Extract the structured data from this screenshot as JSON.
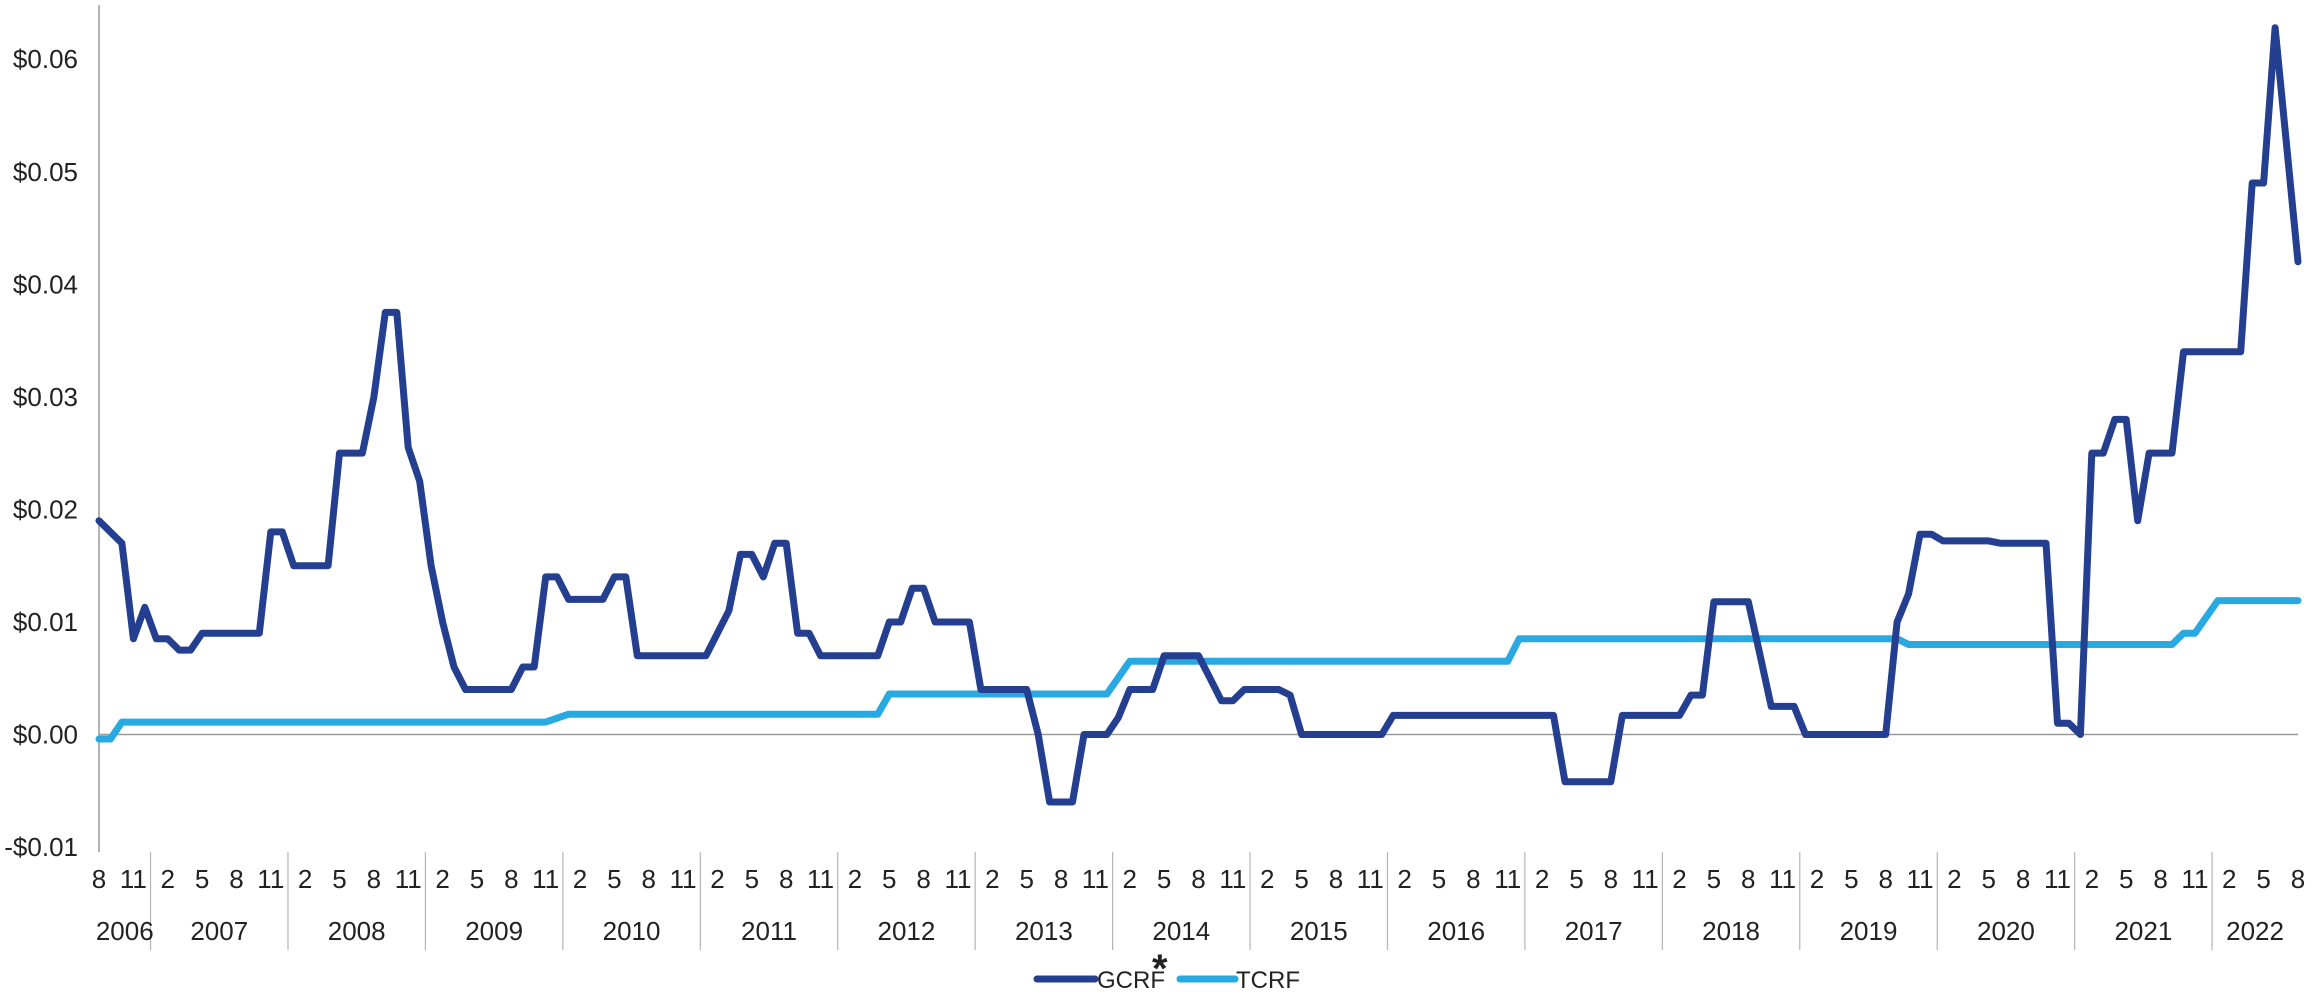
{
  "chart_data": {
    "type": "line",
    "title": "",
    "xlabel": "",
    "ylabel": "",
    "ylim": [
      -0.01,
      0.065
    ],
    "yticks": [
      0.06,
      0.05,
      0.04,
      0.03,
      0.02,
      0.01,
      0.0,
      -0.01
    ],
    "ytick_labels": [
      "$0.06",
      "$0.05",
      "$0.04",
      "$0.03",
      "$0.02",
      "$0.01",
      "$0.00",
      "-$0.01"
    ],
    "x_start": "2006-08",
    "x_end": "2022-08",
    "month_tick_labels": [
      "8",
      "11",
      "2",
      "5",
      "8",
      "11",
      "2",
      "5",
      "8",
      "11",
      "2",
      "5",
      "8",
      "11",
      "2",
      "5",
      "8",
      "11",
      "2",
      "5",
      "8",
      "11",
      "2",
      "5",
      "8",
      "11",
      "2",
      "5",
      "8",
      "11",
      "2",
      "5",
      "8",
      "11",
      "2",
      "5",
      "8",
      "11",
      "2",
      "5",
      "8",
      "11",
      "2",
      "5",
      "8",
      "11",
      "2",
      "5",
      "8",
      "11",
      "2",
      "5",
      "8",
      "11",
      "2",
      "5",
      "8",
      "11",
      "2",
      "5",
      "8",
      "11",
      "2",
      "5",
      "8"
    ],
    "month_tick_dates": [
      "2006-08",
      "2006-11",
      "2007-02",
      "2007-05",
      "2007-08",
      "2007-11",
      "2008-02",
      "2008-05",
      "2008-08",
      "2008-11",
      "2009-02",
      "2009-05",
      "2009-08",
      "2009-11",
      "2010-02",
      "2010-05",
      "2010-08",
      "2010-11",
      "2011-02",
      "2011-05",
      "2011-08",
      "2011-11",
      "2012-02",
      "2012-05",
      "2012-08",
      "2012-11",
      "2013-02",
      "2013-05",
      "2013-08",
      "2013-11",
      "2014-02",
      "2014-05",
      "2014-08",
      "2014-11",
      "2015-02",
      "2015-05",
      "2015-08",
      "2015-11",
      "2016-02",
      "2016-05",
      "2016-08",
      "2016-11",
      "2017-02",
      "2017-05",
      "2017-08",
      "2017-11",
      "2018-02",
      "2018-05",
      "2018-08",
      "2018-11",
      "2019-02",
      "2019-05",
      "2019-08",
      "2019-11",
      "2020-02",
      "2020-05",
      "2020-08",
      "2020-11",
      "2021-02",
      "2021-05",
      "2021-08",
      "2021-11",
      "2022-02",
      "2022-05",
      "2022-08"
    ],
    "years": [
      "2006",
      "2007",
      "2008",
      "2009",
      "2010",
      "2011",
      "2012",
      "2013",
      "2014",
      "2015",
      "2016",
      "2017",
      "2018",
      "2019",
      "2020",
      "2021",
      "2022"
    ],
    "grid": false,
    "legend_position": "bottom-center",
    "footnote_mark": "*",
    "series": [
      {
        "name": "GCRF",
        "color": "#243f8f",
        "points": [
          [
            "2006-08",
            0.019
          ],
          [
            "2006-10",
            0.017
          ],
          [
            "2006-11",
            0.0085
          ],
          [
            "2006-12",
            0.0113
          ],
          [
            "2007-01",
            0.0085
          ],
          [
            "2007-02",
            0.0085
          ],
          [
            "2007-03",
            0.0075
          ],
          [
            "2007-04",
            0.0075
          ],
          [
            "2007-05",
            0.009
          ],
          [
            "2007-10",
            0.009
          ],
          [
            "2007-11",
            0.018
          ],
          [
            "2007-12",
            0.018
          ],
          [
            "2008-01",
            0.015
          ],
          [
            "2008-04",
            0.015
          ],
          [
            "2008-05",
            0.025
          ],
          [
            "2008-07",
            0.025
          ],
          [
            "2008-08",
            0.03
          ],
          [
            "2008-09",
            0.0375
          ],
          [
            "2008-10",
            0.0375
          ],
          [
            "2008-11",
            0.0255
          ],
          [
            "2008-12",
            0.0225
          ],
          [
            "2009-01",
            0.015
          ],
          [
            "2009-02",
            0.01
          ],
          [
            "2009-03",
            0.006
          ],
          [
            "2009-04",
            0.004
          ],
          [
            "2009-08",
            0.004
          ],
          [
            "2009-09",
            0.006
          ],
          [
            "2009-10",
            0.006
          ],
          [
            "2009-11",
            0.014
          ],
          [
            "2009-12",
            0.014
          ],
          [
            "2010-01",
            0.012
          ],
          [
            "2010-04",
            0.012
          ],
          [
            "2010-05",
            0.014
          ],
          [
            "2010-06",
            0.014
          ],
          [
            "2010-07",
            0.007
          ],
          [
            "2011-01",
            0.007
          ],
          [
            "2011-03",
            0.011
          ],
          [
            "2011-04",
            0.016
          ],
          [
            "2011-05",
            0.016
          ],
          [
            "2011-06",
            0.014
          ],
          [
            "2011-07",
            0.017
          ],
          [
            "2011-08",
            0.017
          ],
          [
            "2011-09",
            0.009
          ],
          [
            "2011-10",
            0.009
          ],
          [
            "2011-11",
            0.007
          ],
          [
            "2012-04",
            0.007
          ],
          [
            "2012-05",
            0.01
          ],
          [
            "2012-06",
            0.01
          ],
          [
            "2012-07",
            0.013
          ],
          [
            "2012-08",
            0.013
          ],
          [
            "2012-09",
            0.01
          ],
          [
            "2012-12",
            0.01
          ],
          [
            "2013-01",
            0.004
          ],
          [
            "2013-05",
            0.004
          ],
          [
            "2013-06",
            0.0
          ],
          [
            "2013-07",
            -0.006
          ],
          [
            "2013-09",
            -0.006
          ],
          [
            "2013-10",
            0.0
          ],
          [
            "2013-12",
            0.0
          ],
          [
            "2014-01",
            0.0015
          ],
          [
            "2014-02",
            0.004
          ],
          [
            "2014-04",
            0.004
          ],
          [
            "2014-05",
            0.007
          ],
          [
            "2014-08",
            0.007
          ],
          [
            "2014-09",
            0.005
          ],
          [
            "2014-10",
            0.003
          ],
          [
            "2014-11",
            0.003
          ],
          [
            "2014-12",
            0.004
          ],
          [
            "2015-03",
            0.004
          ],
          [
            "2015-04",
            0.0035
          ],
          [
            "2015-05",
            0.0
          ],
          [
            "2015-12",
            0.0
          ],
          [
            "2016-01",
            0.0017
          ],
          [
            "2017-03",
            0.0017
          ],
          [
            "2017-04",
            -0.0042
          ],
          [
            "2017-08",
            -0.0042
          ],
          [
            "2017-09",
            0.0017
          ],
          [
            "2018-02",
            0.0017
          ],
          [
            "2018-03",
            0.0035
          ],
          [
            "2018-04",
            0.0035
          ],
          [
            "2018-05",
            0.0118
          ],
          [
            "2018-08",
            0.0118
          ],
          [
            "2018-09",
            0.0072
          ],
          [
            "2018-10",
            0.0025
          ],
          [
            "2018-12",
            0.0025
          ],
          [
            "2019-01",
            0.0
          ],
          [
            "2019-08",
            0.0
          ],
          [
            "2019-09",
            0.01
          ],
          [
            "2019-10",
            0.0125
          ],
          [
            "2019-11",
            0.0178
          ],
          [
            "2019-12",
            0.0178
          ],
          [
            "2020-01",
            0.0172
          ],
          [
            "2020-05",
            0.0172
          ],
          [
            "2020-06",
            0.017
          ],
          [
            "2020-10",
            0.017
          ],
          [
            "2020-11",
            0.001
          ],
          [
            "2020-12",
            0.001
          ],
          [
            "2021-01",
            0.0
          ],
          [
            "2021-02",
            0.025
          ],
          [
            "2021-03",
            0.025
          ],
          [
            "2021-04",
            0.028
          ],
          [
            "2021-05",
            0.028
          ],
          [
            "2021-06",
            0.019
          ],
          [
            "2021-07",
            0.025
          ],
          [
            "2021-09",
            0.025
          ],
          [
            "2021-10",
            0.034
          ],
          [
            "2022-03",
            0.034
          ],
          [
            "2022-04",
            0.049
          ],
          [
            "2022-05",
            0.049
          ],
          [
            "2022-06",
            0.0628
          ],
          [
            "2022-08",
            0.042
          ]
        ]
      },
      {
        "name": "TCRF",
        "color": "#29a9e1",
        "points": [
          [
            "2006-08",
            -0.0004
          ],
          [
            "2006-09",
            -0.0004
          ],
          [
            "2006-10",
            0.0011
          ],
          [
            "2009-11",
            0.0011
          ],
          [
            "2010-01",
            0.0018
          ],
          [
            "2012-04",
            0.0018
          ],
          [
            "2012-05",
            0.0036
          ],
          [
            "2013-12",
            0.0036
          ],
          [
            "2014-02",
            0.0065
          ],
          [
            "2016-11",
            0.0065
          ],
          [
            "2016-12",
            0.0085
          ],
          [
            "2019-09",
            0.0085
          ],
          [
            "2019-10",
            0.008
          ],
          [
            "2021-09",
            0.008
          ],
          [
            "2021-10",
            0.009
          ],
          [
            "2021-11",
            0.009
          ],
          [
            "2022-01",
            0.0119
          ],
          [
            "2022-08",
            0.0119
          ]
        ]
      }
    ]
  }
}
